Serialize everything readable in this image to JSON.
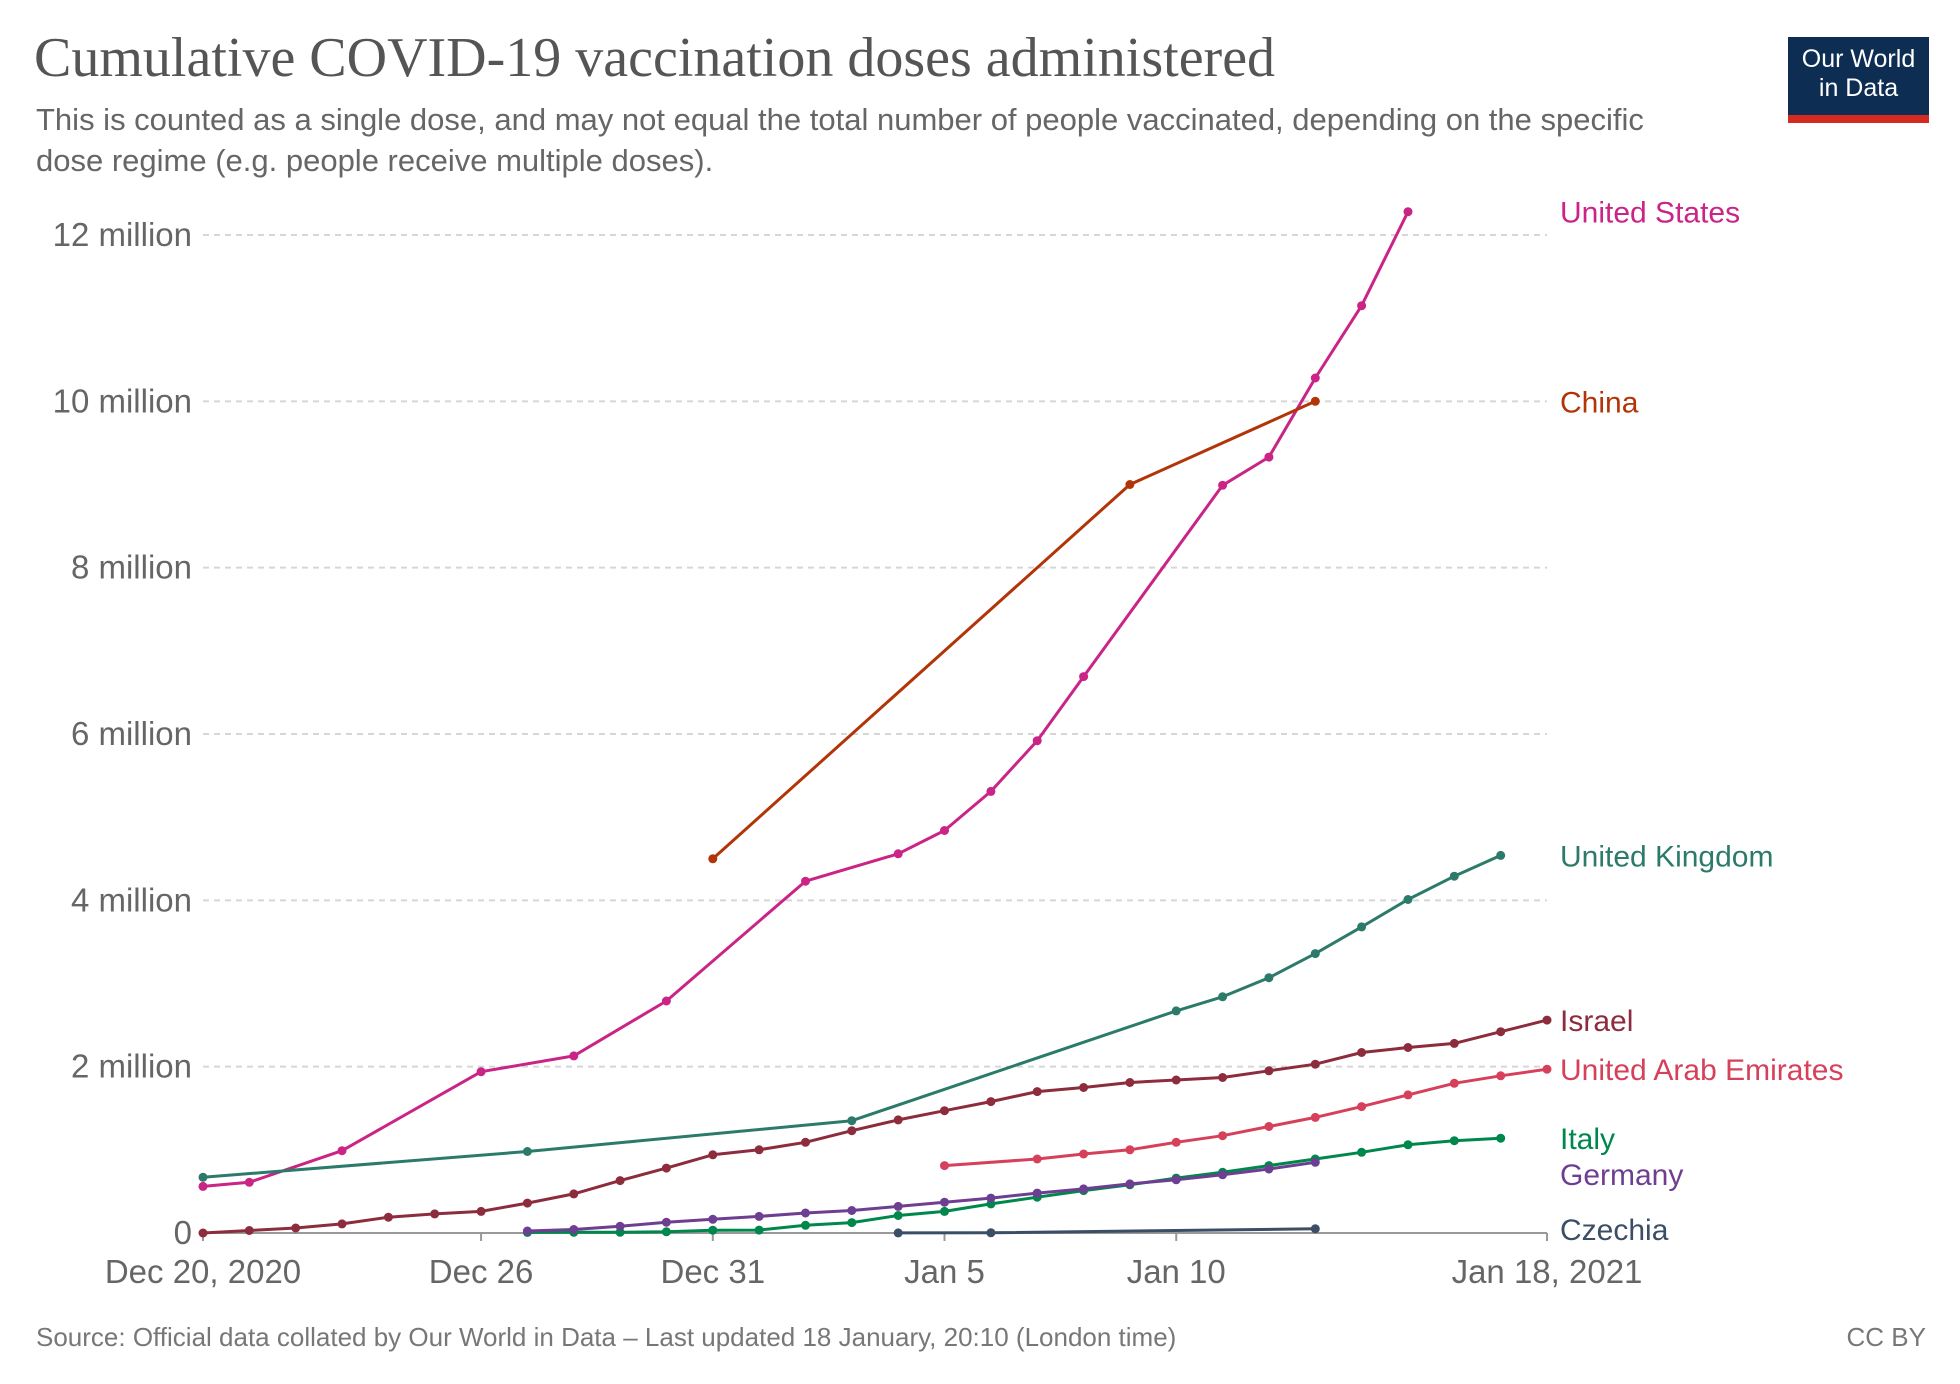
{
  "title": "Cumulative COVID-19 vaccination doses administered",
  "subtitle": "This is counted as a single dose, and may not equal the total number of people vaccinated, depending on the specific dose regime (e.g. people receive multiple doses).",
  "logo": {
    "line1": "Our World",
    "line2": "in Data",
    "bg_color": "#0d2d53",
    "accent_color": "#d42b21"
  },
  "source": "Source: Official data collated by Our World in Data – Last updated 18 January, 20:10 (London time)",
  "license": "CC BY",
  "chart_data": {
    "type": "line",
    "grid": "horizontal dashed",
    "x_domain": [
      "2020-12-20",
      "2021-01-18"
    ],
    "y_range": [
      0,
      12000000
    ],
    "x_ticks": [
      {
        "date": "2020-12-20",
        "label": "Dec 20, 2020"
      },
      {
        "date": "2020-12-26",
        "label": "Dec 26"
      },
      {
        "date": "2020-12-31",
        "label": "Dec 31"
      },
      {
        "date": "2021-01-05",
        "label": "Jan 5"
      },
      {
        "date": "2021-01-10",
        "label": "Jan 10"
      },
      {
        "date": "2021-01-18",
        "label": "Jan 18, 2021"
      }
    ],
    "y_ticks": [
      {
        "value": 0,
        "label": "0"
      },
      {
        "value": 2000000,
        "label": "2 million"
      },
      {
        "value": 4000000,
        "label": "4 million"
      },
      {
        "value": 6000000,
        "label": "6 million"
      },
      {
        "value": 8000000,
        "label": "8 million"
      },
      {
        "value": 10000000,
        "label": "10 million"
      },
      {
        "value": 12000000,
        "label": "12 million"
      }
    ],
    "series": [
      {
        "name": "United States",
        "color": "#c92486",
        "points": [
          [
            "2020-12-20",
            560000
          ],
          [
            "2020-12-21",
            610000
          ],
          [
            "2020-12-23",
            990000
          ],
          [
            "2020-12-26",
            1940000
          ],
          [
            "2020-12-28",
            2130000
          ],
          [
            "2020-12-30",
            2790000
          ],
          [
            "2021-01-02",
            4230000
          ],
          [
            "2021-01-04",
            4560000
          ],
          [
            "2021-01-05",
            4840000
          ],
          [
            "2021-01-06",
            5310000
          ],
          [
            "2021-01-07",
            5920000
          ],
          [
            "2021-01-08",
            6690000
          ],
          [
            "2021-01-11",
            8990000
          ],
          [
            "2021-01-12",
            9330000
          ],
          [
            "2021-01-13",
            10280000
          ],
          [
            "2021-01-14",
            11150000
          ],
          [
            "2021-01-15",
            12280000
          ]
        ]
      },
      {
        "name": "China",
        "color": "#b13507",
        "points": [
          [
            "2020-12-31",
            4500000
          ],
          [
            "2021-01-09",
            9000000
          ],
          [
            "2021-01-13",
            10000000
          ]
        ]
      },
      {
        "name": "United Kingdom",
        "color": "#2c7b6a",
        "points": [
          [
            "2020-12-20",
            670000
          ],
          [
            "2020-12-27",
            980000
          ],
          [
            "2021-01-03",
            1350000
          ],
          [
            "2021-01-10",
            2670000
          ],
          [
            "2021-01-11",
            2840000
          ],
          [
            "2021-01-12",
            3070000
          ],
          [
            "2021-01-13",
            3360000
          ],
          [
            "2021-01-14",
            3680000
          ],
          [
            "2021-01-15",
            4010000
          ],
          [
            "2021-01-16",
            4290000
          ],
          [
            "2021-01-17",
            4540000
          ]
        ]
      },
      {
        "name": "Israel",
        "color": "#8c2c3c",
        "points": [
          [
            "2020-12-20",
            0
          ],
          [
            "2020-12-21",
            30000
          ],
          [
            "2020-12-22",
            60000
          ],
          [
            "2020-12-23",
            110000
          ],
          [
            "2020-12-24",
            190000
          ],
          [
            "2020-12-25",
            230000
          ],
          [
            "2020-12-26",
            260000
          ],
          [
            "2020-12-27",
            360000
          ],
          [
            "2020-12-28",
            470000
          ],
          [
            "2020-12-29",
            630000
          ],
          [
            "2020-12-30",
            780000
          ],
          [
            "2020-12-31",
            940000
          ],
          [
            "2021-01-01",
            1000000
          ],
          [
            "2021-01-02",
            1090000
          ],
          [
            "2021-01-03",
            1230000
          ],
          [
            "2021-01-04",
            1360000
          ],
          [
            "2021-01-05",
            1470000
          ],
          [
            "2021-01-06",
            1580000
          ],
          [
            "2021-01-07",
            1700000
          ],
          [
            "2021-01-08",
            1750000
          ],
          [
            "2021-01-09",
            1810000
          ],
          [
            "2021-01-10",
            1840000
          ],
          [
            "2021-01-11",
            1870000
          ],
          [
            "2021-01-12",
            1950000
          ],
          [
            "2021-01-13",
            2030000
          ],
          [
            "2021-01-14",
            2170000
          ],
          [
            "2021-01-15",
            2230000
          ],
          [
            "2021-01-16",
            2280000
          ],
          [
            "2021-01-17",
            2420000
          ],
          [
            "2021-01-18",
            2560000
          ]
        ]
      },
      {
        "name": "United Arab Emirates",
        "color": "#d6405b",
        "points": [
          [
            "2021-01-05",
            810000
          ],
          [
            "2021-01-07",
            890000
          ],
          [
            "2021-01-08",
            950000
          ],
          [
            "2021-01-09",
            1000000
          ],
          [
            "2021-01-10",
            1090000
          ],
          [
            "2021-01-11",
            1170000
          ],
          [
            "2021-01-12",
            1280000
          ],
          [
            "2021-01-13",
            1390000
          ],
          [
            "2021-01-14",
            1520000
          ],
          [
            "2021-01-15",
            1660000
          ],
          [
            "2021-01-16",
            1800000
          ],
          [
            "2021-01-17",
            1890000
          ],
          [
            "2021-01-18",
            1970000
          ]
        ]
      },
      {
        "name": "Italy",
        "color": "#00874c",
        "points": [
          [
            "2020-12-27",
            7000
          ],
          [
            "2020-12-28",
            9000
          ],
          [
            "2020-12-29",
            9000
          ],
          [
            "2020-12-30",
            14000
          ],
          [
            "2020-12-31",
            34000
          ],
          [
            "2021-01-01",
            35000
          ],
          [
            "2021-01-02",
            92000
          ],
          [
            "2021-01-03",
            125000
          ],
          [
            "2021-01-04",
            210000
          ],
          [
            "2021-01-05",
            260000
          ],
          [
            "2021-01-06",
            350000
          ],
          [
            "2021-01-07",
            430000
          ],
          [
            "2021-01-08",
            510000
          ],
          [
            "2021-01-09",
            580000
          ],
          [
            "2021-01-10",
            660000
          ],
          [
            "2021-01-11",
            730000
          ],
          [
            "2021-01-12",
            810000
          ],
          [
            "2021-01-13",
            890000
          ],
          [
            "2021-01-14",
            970000
          ],
          [
            "2021-01-15",
            1060000
          ],
          [
            "2021-01-16",
            1110000
          ],
          [
            "2021-01-17",
            1140000
          ]
        ]
      },
      {
        "name": "Germany",
        "color": "#6d3e91",
        "points": [
          [
            "2020-12-27",
            24000
          ],
          [
            "2020-12-28",
            42000
          ],
          [
            "2020-12-29",
            80000
          ],
          [
            "2020-12-30",
            130000
          ],
          [
            "2020-12-31",
            165000
          ],
          [
            "2021-01-01",
            200000
          ],
          [
            "2021-01-02",
            240000
          ],
          [
            "2021-01-03",
            270000
          ],
          [
            "2021-01-04",
            320000
          ],
          [
            "2021-01-05",
            370000
          ],
          [
            "2021-01-06",
            420000
          ],
          [
            "2021-01-07",
            480000
          ],
          [
            "2021-01-08",
            530000
          ],
          [
            "2021-01-09",
            590000
          ],
          [
            "2021-01-10",
            640000
          ],
          [
            "2021-01-11",
            700000
          ],
          [
            "2021-01-12",
            770000
          ],
          [
            "2021-01-13",
            850000
          ]
        ]
      },
      {
        "name": "Czechia",
        "color": "#3c4e66",
        "points": [
          [
            "2021-01-04",
            1000
          ],
          [
            "2021-01-06",
            3000
          ],
          [
            "2021-01-13",
            51000
          ]
        ]
      }
    ]
  }
}
